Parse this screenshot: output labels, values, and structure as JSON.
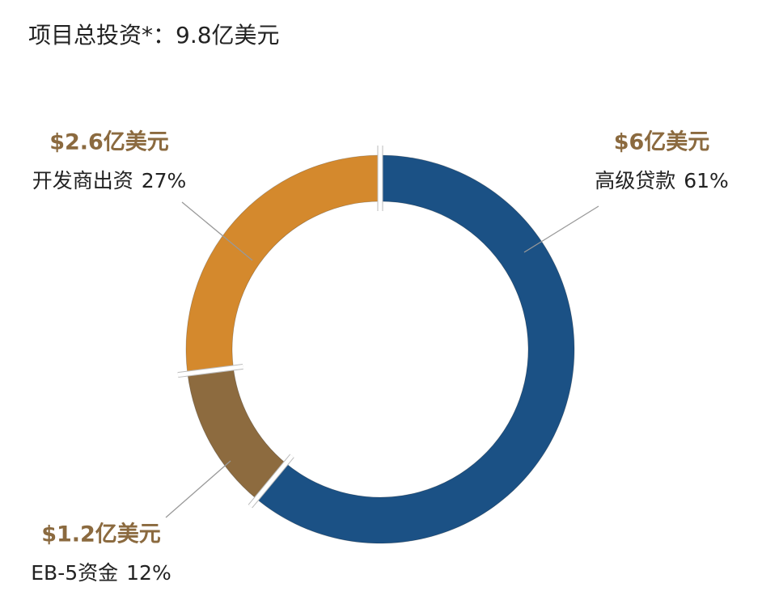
{
  "chart_data": {
    "type": "donut",
    "title": "项目总投资*：9.8亿美元",
    "categories": [
      "高级贷款",
      "EB-5资金",
      "开发商出资"
    ],
    "values": [
      61,
      12,
      27
    ],
    "value_labels": [
      "61%",
      "12%",
      "27%"
    ],
    "amount_labels": [
      "$6亿美元",
      "$1.2亿美元",
      "$2.6亿美元"
    ],
    "colors": [
      "#1b5185",
      "#8d6b3f",
      "#d4892d"
    ]
  }
}
